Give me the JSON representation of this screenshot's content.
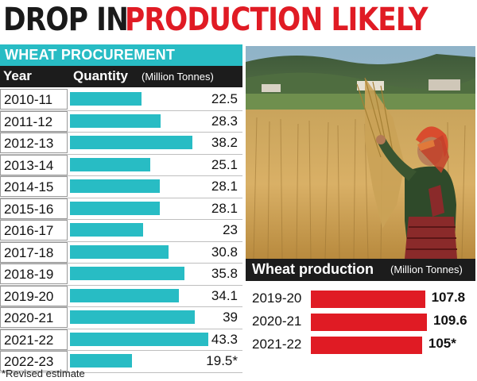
{
  "headline": {
    "part1": "DROP IN",
    "part2": "PRODUCTION LIKELY"
  },
  "procurement": {
    "title": "WHEAT PROCUREMENT",
    "col_year": "Year",
    "col_quantity": "Quantity",
    "col_unit": "(Million Tonnes)",
    "rows": [
      {
        "year": "2010-11",
        "label": "22.5"
      },
      {
        "year": "2011-12",
        "label": "28.3"
      },
      {
        "year": "2012-13",
        "label": "38.2"
      },
      {
        "year": "2013-14",
        "label": "25.1"
      },
      {
        "year": "2014-15",
        "label": "28.1"
      },
      {
        "year": "2015-16",
        "label": "28.1"
      },
      {
        "year": "2016-17",
        "label": "23"
      },
      {
        "year": "2017-18",
        "label": "30.8"
      },
      {
        "year": "2018-19",
        "label": "35.8"
      },
      {
        "year": "2019-20",
        "label": "34.1"
      },
      {
        "year": "2020-21",
        "label": "39"
      },
      {
        "year": "2021-22",
        "label": "43.3"
      },
      {
        "year": "2022-23",
        "label": "19.5*"
      }
    ]
  },
  "production": {
    "title": "Wheat production",
    "unit": "(Million Tonnes)",
    "rows": [
      {
        "year": "2019-20",
        "label": "107.8"
      },
      {
        "year": "2020-21",
        "label": "109.6"
      },
      {
        "year": "2021-22",
        "label": "105*"
      }
    ]
  },
  "footnote": "*Revised estimate",
  "colors": {
    "procurement_bar": "#28bcc4",
    "production_bar": "#e01b24",
    "header_dark": "#1c1c1c"
  },
  "chart_data": [
    {
      "type": "bar",
      "title": "WHEAT PROCUREMENT",
      "xlabel": "Year",
      "ylabel": "Quantity (Million Tonnes)",
      "categories": [
        "2010-11",
        "2011-12",
        "2012-13",
        "2013-14",
        "2014-15",
        "2015-16",
        "2016-17",
        "2017-18",
        "2018-19",
        "2019-20",
        "2020-21",
        "2021-22",
        "2022-23"
      ],
      "values": [
        22.5,
        28.3,
        38.2,
        25.1,
        28.1,
        28.1,
        23,
        30.8,
        35.8,
        34.1,
        39,
        43.3,
        19.5
      ],
      "orientation": "horizontal"
    },
    {
      "type": "bar",
      "title": "Wheat production",
      "ylabel": "(Million Tonnes)",
      "categories": [
        "2019-20",
        "2020-21",
        "2021-22"
      ],
      "values": [
        107.8,
        109.6,
        105
      ],
      "orientation": "horizontal"
    }
  ]
}
